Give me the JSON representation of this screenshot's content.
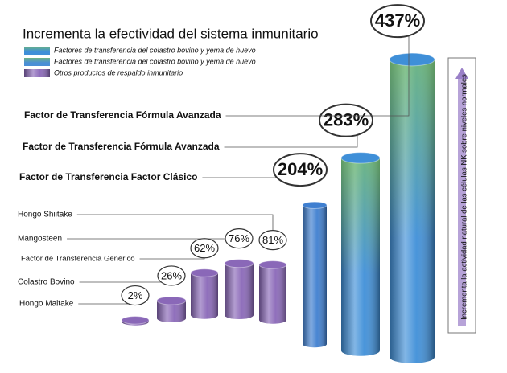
{
  "chart_data": {
    "type": "cylinder-bar",
    "title": "Incrementa la efectividad del sistema inmunitario",
    "legend": [
      {
        "label": "Factores de transferencia del colastro bovino y yema de huevo",
        "color": "#3f8fd8"
      },
      {
        "label": "Factores de transferencia del colastro bovino y yema de huevo",
        "color": "#4a8fd6"
      },
      {
        "label": "Otros productos de respaldo inmunitario",
        "color": "#8a68b8"
      }
    ],
    "categories": [
      "Hongo Maitake",
      "Colastro Bovino",
      "Factor de Transferencia Genérico",
      "Mangosteen",
      "Hongo Shiitake",
      "Factor de Transferencia Factor Clásico",
      "Factor de Transferencia Fórmula Avanzada",
      "Factor de Transferencia Fórmula Avanzada"
    ],
    "values": [
      2,
      26,
      62,
      76,
      81,
      204,
      283,
      437
    ],
    "value_labels": [
      "2%",
      "26%",
      "62%",
      "76%",
      "81%",
      "204%",
      "283%",
      "437%"
    ],
    "colors": [
      "#8a68b8",
      "#8a68b8",
      "#8a68b8",
      "#8a68b8",
      "#8a68b8",
      "#3f7fd0",
      "#3f8fd8",
      "#3f8fd8"
    ],
    "annotation": "Incrementa la actividad natural de las células NK sobre niveles normales"
  }
}
